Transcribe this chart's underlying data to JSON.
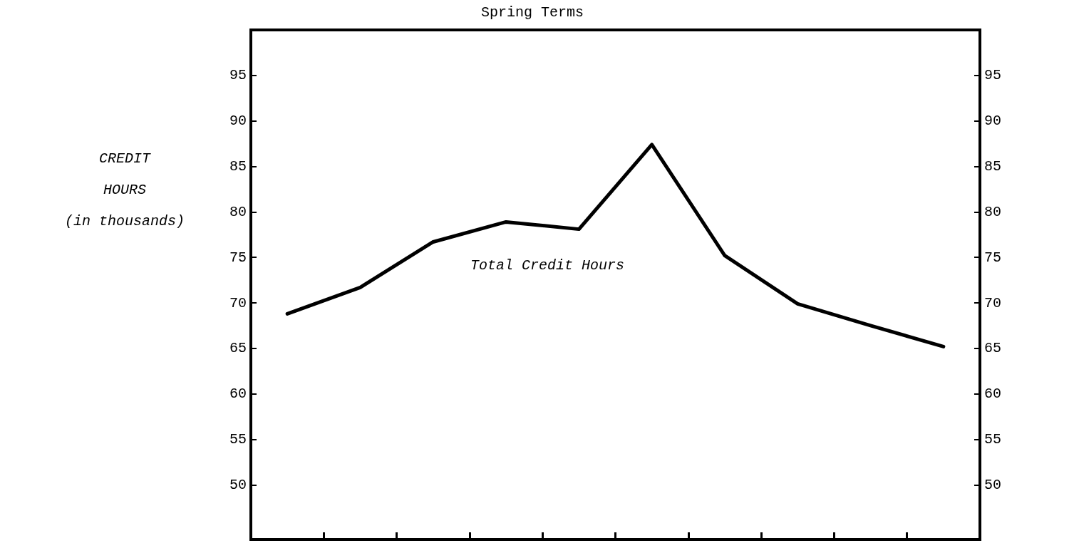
{
  "chart_data": {
    "type": "line",
    "title": "Spring Terms",
    "ylabel": "CREDIT\nHOURS\n(in thousands)",
    "annotations": [
      "Total Credit Hours"
    ],
    "categories": [
      null,
      null,
      null,
      null,
      null,
      null,
      null,
      null,
      null,
      null
    ],
    "series": [
      {
        "color": "#000000",
        "values": [
          68.8,
          71.7,
          76.7,
          78.9,
          78.1,
          87.4,
          75.2,
          69.9,
          67.5,
          65.2
        ]
      }
    ],
    "ylim": [
      44,
      100
    ],
    "yticks": [
      50,
      55,
      60,
      65,
      70,
      75,
      80,
      85,
      90,
      95
    ],
    "y2lim": [
      44,
      100
    ],
    "y2ticks": [
      50,
      55,
      60,
      65,
      70,
      75,
      80,
      85,
      90,
      95
    ],
    "grid": false,
    "marker": "none",
    "line_style": "solid"
  }
}
